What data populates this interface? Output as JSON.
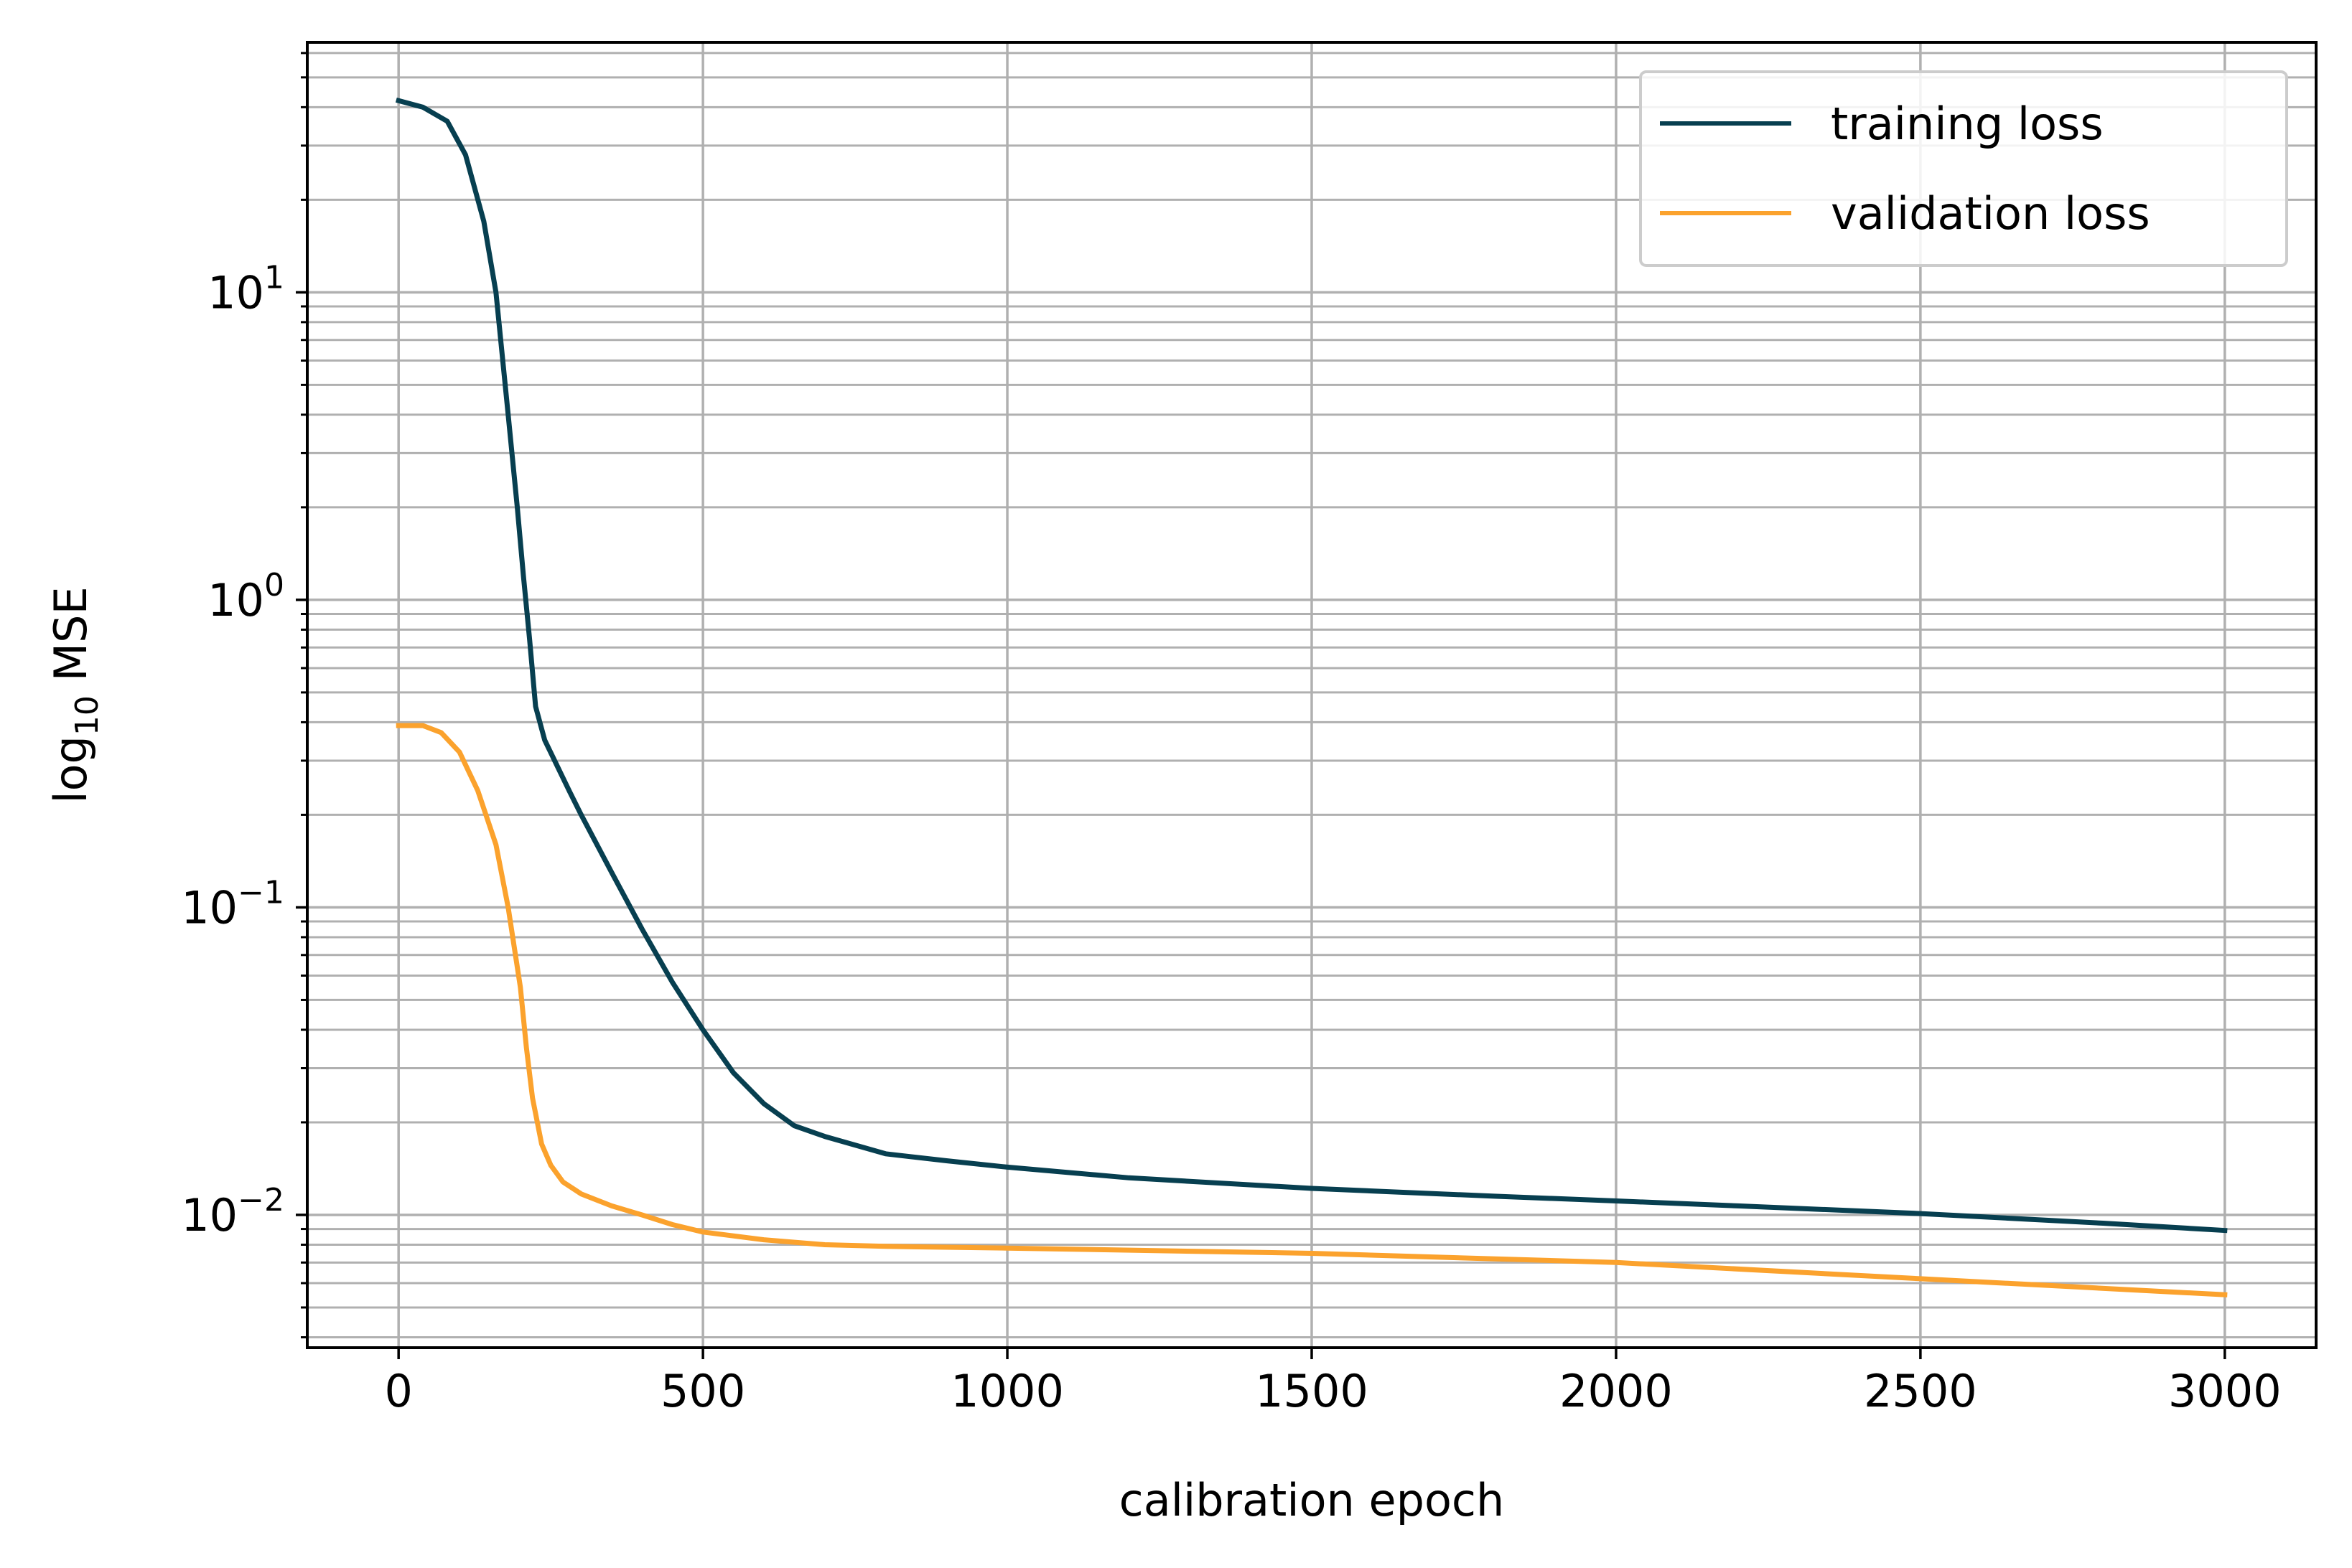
{
  "chart_data": {
    "type": "line",
    "xlabel": "calibration epoch",
    "ylabel_prefix": "log",
    "ylabel_subscript": "10",
    "ylabel_suffix": " MSE",
    "yscale": "log",
    "xlim": [
      -150,
      3150
    ],
    "ylim": [
      0.0037,
      65
    ],
    "x_ticks": [
      0,
      500,
      1000,
      1500,
      2000,
      2500,
      3000
    ],
    "x_tick_labels": [
      "0",
      "500",
      "1000",
      "1500",
      "2000",
      "2500",
      "3000"
    ],
    "y_ticks": [
      0.01,
      0.1,
      1,
      10
    ],
    "y_tick_labels": [
      {
        "base": "10",
        "exp": "−2"
      },
      {
        "base": "10",
        "exp": "−1"
      },
      {
        "base": "10",
        "exp": "0"
      },
      {
        "base": "10",
        "exp": "1"
      }
    ],
    "grid": true,
    "grid_color": "#b0b0b0",
    "legend_position": "top-right",
    "series": [
      {
        "name": "training loss",
        "color": "#073f50",
        "x": [
          0,
          40,
          80,
          110,
          140,
          160,
          180,
          195,
          205,
          215,
          225,
          240,
          260,
          280,
          300,
          350,
          400,
          450,
          500,
          550,
          600,
          650,
          700,
          800,
          900,
          1000,
          1200,
          1500,
          1800,
          2000,
          2200,
          2500,
          2800,
          3000
        ],
        "y": [
          42,
          40,
          36,
          28,
          17,
          10,
          4.0,
          2.0,
          1.2,
          0.75,
          0.45,
          0.35,
          0.29,
          0.24,
          0.2,
          0.13,
          0.085,
          0.057,
          0.04,
          0.029,
          0.023,
          0.0195,
          0.018,
          0.0158,
          0.015,
          0.0143,
          0.0132,
          0.0122,
          0.0115,
          0.0111,
          0.0107,
          0.0101,
          0.0094,
          0.0089
        ]
      },
      {
        "name": "validation loss",
        "color": "#fba22d",
        "x": [
          0,
          40,
          70,
          100,
          130,
          160,
          180,
          200,
          210,
          220,
          235,
          250,
          270,
          300,
          350,
          400,
          450,
          500,
          600,
          700,
          800,
          1000,
          1500,
          2000,
          2500,
          3000
        ],
        "y": [
          0.39,
          0.39,
          0.37,
          0.32,
          0.24,
          0.16,
          0.1,
          0.055,
          0.035,
          0.024,
          0.017,
          0.0145,
          0.0128,
          0.0117,
          0.0107,
          0.01,
          0.0093,
          0.0088,
          0.0083,
          0.008,
          0.0079,
          0.0078,
          0.0075,
          0.007,
          0.0062,
          0.0055
        ]
      }
    ]
  }
}
